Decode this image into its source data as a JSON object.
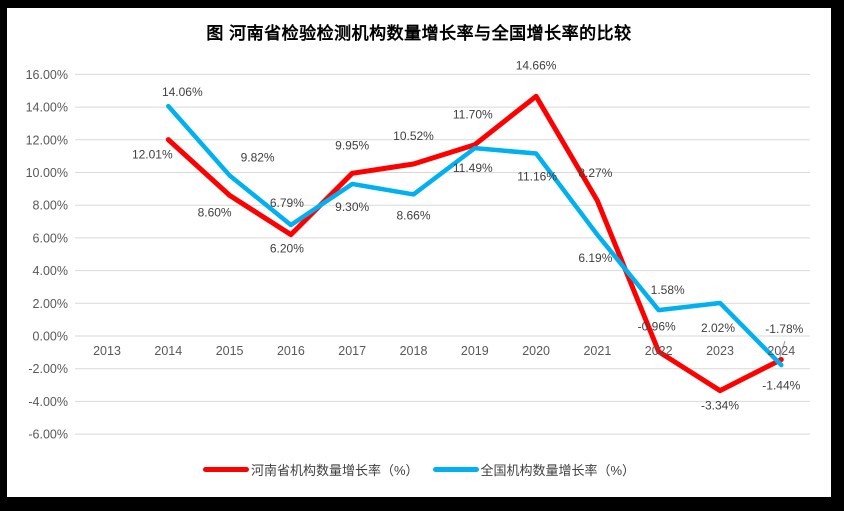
{
  "title": "图  河南省检验检测机构数量增长率与全国增长率的比较",
  "chart_data": {
    "type": "line",
    "categories": [
      "2013",
      "2014",
      "2015",
      "2016",
      "2017",
      "2018",
      "2019",
      "2020",
      "2021",
      "2022",
      "2023",
      "2024"
    ],
    "series": [
      {
        "name": "河南省机构数量增长率（%）",
        "color": "#FF0000",
        "values": [
          null,
          12.01,
          8.6,
          6.2,
          9.95,
          10.52,
          11.7,
          14.66,
          8.27,
          -0.96,
          -3.34,
          -1.44
        ],
        "labels": [
          null,
          "12.01%",
          "8.60%",
          "6.20%",
          "9.95%",
          "10.52%",
          "11.70%",
          "14.66%",
          "8.27%",
          "-0.96%",
          "-3.34%",
          "-1.44%"
        ]
      },
      {
        "name": "全国机构数量增长率（%）",
        "color": "#00B0F0",
        "values": [
          null,
          14.06,
          9.82,
          6.79,
          9.3,
          8.66,
          11.49,
          11.16,
          6.19,
          1.58,
          2.02,
          -1.78
        ],
        "labels": [
          null,
          "14.06%",
          "9.82%",
          "6.79%",
          "9.30%",
          "8.66%",
          "11.49%",
          "11.16%",
          "6.19%",
          "1.58%",
          "2.02%",
          "-1.78%"
        ]
      }
    ],
    "y_axis": {
      "min": -6,
      "max": 16,
      "step": 2,
      "tick_labels": [
        "16.00%",
        "14.00%",
        "12.00%",
        "10.00%",
        "8.00%",
        "6.00%",
        "4.00%",
        "2.00%",
        "0.00%",
        "-2.00%",
        "-4.00%",
        "-6.00%"
      ]
    },
    "grid": true,
    "legend_position": "bottom"
  },
  "colors": {
    "background": "#FFFFFF",
    "frame": "#000000",
    "gridline": "#D9D9D9",
    "axis_text": "#595959",
    "data_label_text": "#404040",
    "leader_line": "#A6A6A6"
  }
}
